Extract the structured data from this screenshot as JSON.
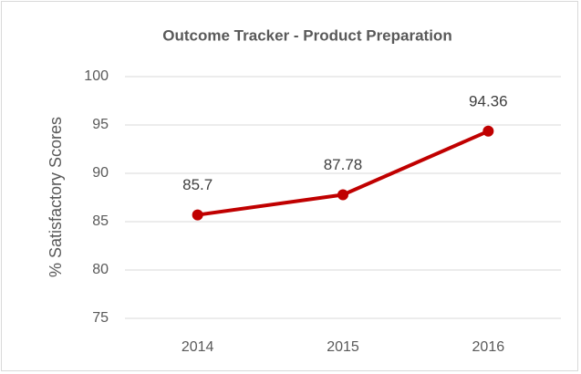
{
  "chart_data": {
    "type": "line",
    "title": "Outcome Tracker - Product Preparation",
    "y_label": "% Satisfactory Scores",
    "categories": [
      "2014",
      "2015",
      "2016"
    ],
    "series": [
      {
        "name": "% Satisfactory Scores",
        "color": "#c00000",
        "values": [
          85.7,
          87.78,
          94.36
        ]
      }
    ],
    "ylim": [
      75,
      100
    ],
    "yticks": [
      75,
      80,
      85,
      90,
      95,
      100
    ],
    "grid": true
  }
}
